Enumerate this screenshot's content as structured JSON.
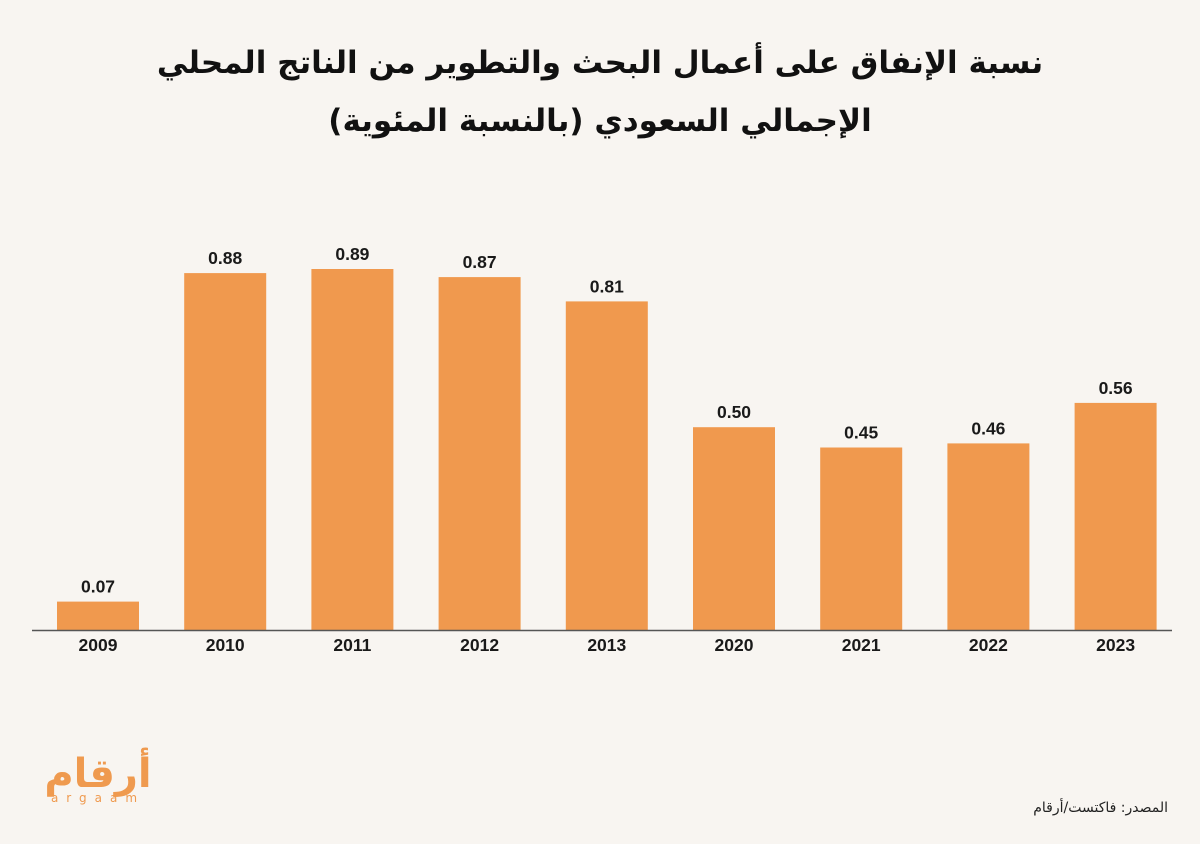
{
  "chart_data": {
    "type": "bar",
    "title_line1": "نسبة الإنفاق على أعمال البحث والتطوير من الناتج المحلي",
    "title_line2": "الإجمالي السعودي (بالنسبة المئوية)",
    "categories": [
      "2009",
      "2010",
      "2011",
      "2012",
      "2013",
      "2020",
      "2021",
      "2022",
      "2023"
    ],
    "values": [
      0.07,
      0.88,
      0.89,
      0.87,
      0.81,
      0.5,
      0.45,
      0.46,
      0.56
    ],
    "value_labels": [
      "0.07",
      "0.88",
      "0.89",
      "0.87",
      "0.81",
      "0.50",
      "0.45",
      "0.46",
      "0.56"
    ],
    "ylim": [
      0,
      0.89
    ],
    "grid": false,
    "bar_color": "#f0994e",
    "axis_color": "#555555"
  },
  "logo": {
    "arabic": "أرقام",
    "latin": "argaam"
  },
  "source": "المصدر: فاكتست/أرقام"
}
